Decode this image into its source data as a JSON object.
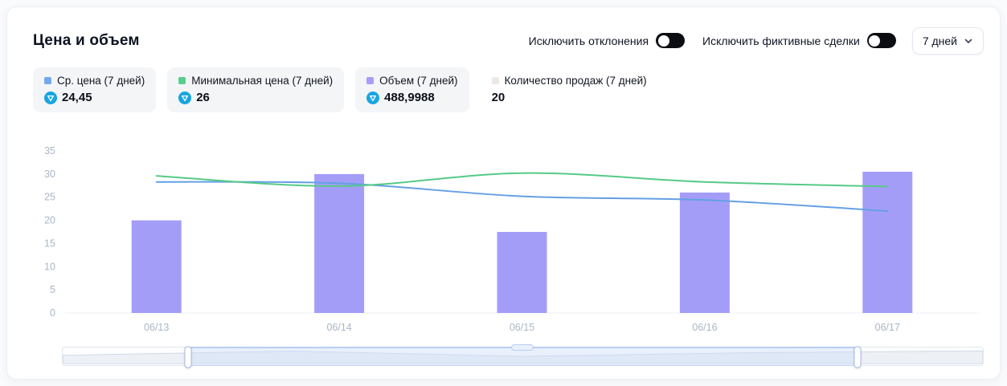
{
  "header": {
    "title": "Цена и объем",
    "toggles": [
      {
        "id": "exclude-outliers",
        "label": "Исключить отклонения",
        "on": true
      },
      {
        "id": "exclude-fake-trades",
        "label": "Исключить фиктивные сделки",
        "on": true
      }
    ],
    "period_select": {
      "value": "7 дней"
    }
  },
  "legend": [
    {
      "id": "avg-price",
      "label": "Ср. цена (7 дней)",
      "value": "24,45",
      "marker_color": "#74a9ea",
      "show_icon": true,
      "card": true
    },
    {
      "id": "min-price",
      "label": "Минимальная цена (7 дней)",
      "value": "26",
      "marker_color": "#57cf8c",
      "show_icon": true,
      "card": true
    },
    {
      "id": "volume",
      "label": "Объем (7 дней)",
      "value": "488,9988",
      "marker_color": "#a69df8",
      "show_icon": true,
      "card": true
    },
    {
      "id": "sales-count",
      "label": "Количество продаж (7 дней)",
      "value": "20",
      "marker_color": "#eee8e4",
      "show_icon": false,
      "card": false
    }
  ],
  "currency_icon_color": "#19a5e1",
  "chart_data": {
    "type": "bar",
    "title": "Цена и объем",
    "categories": [
      "06/13",
      "06/14",
      "06/15",
      "06/16",
      "06/17"
    ],
    "series": [
      {
        "name": "Объем (7 дней)",
        "type": "bar",
        "color": "#a49df8",
        "values": [
          20,
          30,
          17.5,
          26,
          30.5
        ]
      },
      {
        "name": "Ср. цена (7 дней)",
        "type": "line",
        "color": "#64a0e4",
        "values": [
          28.3,
          28.0,
          25.2,
          24.4,
          22.0
        ]
      },
      {
        "name": "Минимальная цена (7 дней)",
        "type": "line",
        "color": "#55ca86",
        "values": [
          29.6,
          27.4,
          30.2,
          28.3,
          27.3
        ]
      }
    ],
    "xlabel": "",
    "ylabel": "",
    "ylim": [
      0,
      35
    ],
    "yticks": [
      0,
      5,
      10,
      15,
      20,
      25,
      30,
      35
    ],
    "grid": false,
    "legend_position": "top"
  },
  "slider": {
    "window_start_pct": 13.5,
    "window_end_pct": 86.5
  }
}
